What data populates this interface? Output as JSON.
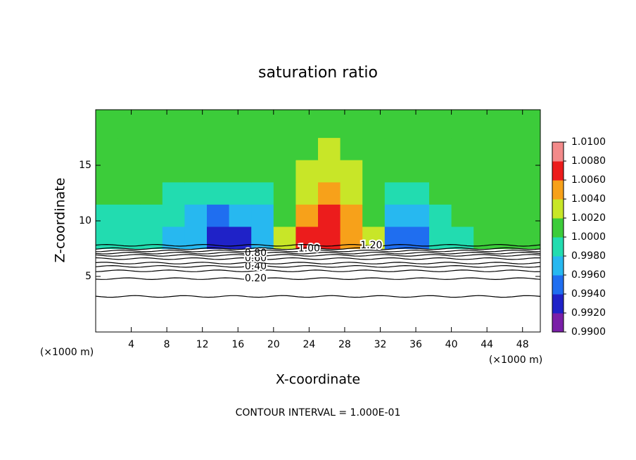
{
  "chart_data": {
    "type": "contour",
    "title": "saturation ratio",
    "x_label": "X-coordinate",
    "y_label": "Z-coordinate",
    "x_unit": "(×1000 m)",
    "footer": "CONTOUR INTERVAL = 1.000E-01",
    "xlim": [
      0,
      50
    ],
    "ylim": [
      0,
      20
    ],
    "xticks": [
      4,
      8,
      12,
      16,
      20,
      24,
      28,
      32,
      36,
      40,
      44,
      48
    ],
    "yticks": [
      5,
      10,
      15
    ],
    "field": {
      "x_edges": [
        0,
        2.5,
        5,
        7.5,
        10,
        12.5,
        15,
        17.5,
        20,
        22.5,
        25,
        27.5,
        30,
        32.5,
        35,
        37.5,
        40,
        42.5,
        45,
        47.5,
        50
      ],
      "z_edges": [
        7.5,
        9.5,
        11.5,
        13.5,
        15.5,
        17.5,
        20
      ],
      "values": [
        [
          0.998,
          0.998,
          0.998,
          0.997,
          0.996,
          0.993,
          0.993,
          0.996,
          1.002,
          1.006,
          1.006,
          1.005,
          1.002,
          0.995,
          0.995,
          0.998,
          0.999,
          1.0,
          1.0,
          1.0
        ],
        [
          0.999,
          0.999,
          0.999,
          0.998,
          0.997,
          0.995,
          0.996,
          0.997,
          1.001,
          1.005,
          1.006,
          1.005,
          1.001,
          0.997,
          0.997,
          0.999,
          1.0,
          1.0,
          1.0,
          1.0
        ],
        [
          1.0,
          1.0,
          1.0,
          0.999,
          0.998,
          0.998,
          0.998,
          0.999,
          1.0,
          1.003,
          1.004,
          1.003,
          1.0,
          0.999,
          0.999,
          1.0,
          1.0,
          1.0,
          1.0,
          1.0
        ],
        [
          1.0,
          1.0,
          1.0,
          1.0,
          1.0,
          1.0,
          1.0,
          1.0,
          1.001,
          1.002,
          1.003,
          1.002,
          1.0,
          1.0,
          1.0,
          1.0,
          1.0,
          1.0,
          1.0,
          1.0
        ],
        [
          1.0,
          1.0,
          1.0,
          1.0,
          1.0,
          1.0,
          1.0,
          1.0,
          1.0,
          1.001,
          1.002,
          1.001,
          1.0,
          1.0,
          1.0,
          1.0,
          1.0,
          1.0,
          1.0,
          1.0
        ],
        [
          1.0,
          1.0,
          1.0,
          1.0,
          1.0,
          1.0,
          1.0,
          1.0,
          1.0,
          1.0,
          1.0,
          1.0,
          1.0,
          1.0,
          1.0,
          1.0,
          1.0,
          1.0,
          1.0,
          1.0
        ]
      ]
    },
    "colorbar": {
      "ticks": [
        {
          "value": 0.99,
          "label": "0.9900"
        },
        {
          "value": 0.992,
          "label": "0.9920"
        },
        {
          "value": 0.994,
          "label": "0.9940"
        },
        {
          "value": 0.996,
          "label": "0.9960"
        },
        {
          "value": 0.998,
          "label": "0.9980"
        },
        {
          "value": 1.0,
          "label": "1.0000"
        },
        {
          "value": 1.002,
          "label": "1.0020"
        },
        {
          "value": 1.004,
          "label": "1.0040"
        },
        {
          "value": 1.006,
          "label": "1.0060"
        },
        {
          "value": 1.008,
          "label": "1.0080"
        },
        {
          "value": 1.01,
          "label": "1.0100"
        }
      ],
      "colors": [
        "#7a1fa8",
        "#1f22c8",
        "#1f6ef0",
        "#27b8f0",
        "#22dcb0",
        "#3ccc3a",
        "#c8e628",
        "#f7a11a",
        "#ec1c1c",
        "#f38a8a"
      ]
    },
    "contours": [
      {
        "level": 0.1,
        "z": 3.2
      },
      {
        "level": 0.2,
        "z": 4.8,
        "label": "0.20",
        "label_x": 18
      },
      {
        "level": 0.3,
        "z": 5.5
      },
      {
        "level": 0.4,
        "z": 5.9,
        "label": "0.40",
        "label_x": 18
      },
      {
        "level": 0.5,
        "z": 6.2
      },
      {
        "level": 0.6,
        "z": 6.6,
        "label": "0.60",
        "label_x": 18
      },
      {
        "level": 0.7,
        "z": 6.9
      },
      {
        "level": 0.8,
        "z": 7.1,
        "label": "0.80",
        "label_x": 18
      },
      {
        "level": 0.9,
        "z": 7.3
      },
      {
        "level": 1.0,
        "z": 7.5,
        "label": "1.00",
        "label_x": 24
      },
      {
        "level": 1.2,
        "z": 7.8,
        "label": "1.20",
        "label_x": 31
      }
    ]
  }
}
